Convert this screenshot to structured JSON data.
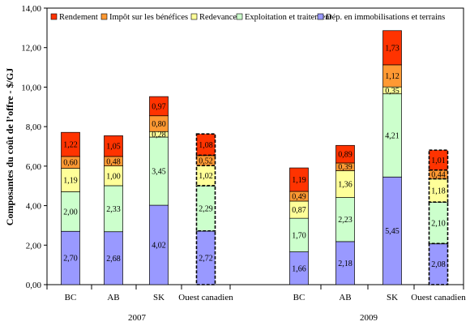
{
  "chart_data": {
    "type": "bar",
    "stacked": true,
    "title": "",
    "ylabel": "Composantes du coût de l’offre - $/GJ",
    "xlabel": "",
    "ylim": [
      0,
      14
    ],
    "yticks": [
      "0,00",
      "2,00",
      "4,00",
      "6,00",
      "8,00",
      "10,00",
      "12,00",
      "14,00"
    ],
    "grid": false,
    "legend_position": "top",
    "groups": [
      {
        "label": "2007",
        "categories": [
          {
            "label": "BC",
            "values": [
              2.7,
              2.0,
              1.19,
              0.6,
              1.22
            ],
            "labels": [
              "2,70",
              "2,00",
              "1,19",
              "0,60",
              "1,22"
            ],
            "dashed": false
          },
          {
            "label": "AB",
            "values": [
              2.68,
              2.33,
              1.0,
              0.48,
              1.05
            ],
            "labels": [
              "2,68",
              "2,33",
              "1,00",
              "0,48",
              "1,05"
            ],
            "dashed": false
          },
          {
            "label": "SK",
            "values": [
              4.02,
              3.45,
              0.28,
              0.8,
              0.97
            ],
            "labels": [
              "4,02",
              "3,45",
              "0,28",
              "0,80",
              "0,97"
            ],
            "dashed": false
          },
          {
            "label": "Ouest canadien",
            "values": [
              2.72,
              2.29,
              1.02,
              0.52,
              1.08
            ],
            "labels": [
              "2,72",
              "2,29",
              "1,02",
              "0,52",
              "1,08"
            ],
            "dashed": true
          }
        ]
      },
      {
        "label": "2009",
        "categories": [
          {
            "label": "BC",
            "values": [
              1.66,
              1.7,
              0.87,
              0.49,
              1.19
            ],
            "labels": [
              "1,66",
              "1,70",
              "0,87",
              "0,49",
              "1,19"
            ],
            "dashed": false
          },
          {
            "label": "AB",
            "values": [
              2.18,
              2.23,
              1.36,
              0.39,
              0.89
            ],
            "labels": [
              "2,18",
              "2,23",
              "1,36",
              "0,39",
              "0,89"
            ],
            "dashed": false
          },
          {
            "label": "SK",
            "values": [
              5.45,
              4.21,
              0.35,
              1.12,
              1.73
            ],
            "labels": [
              "5,45",
              "4,21",
              "0,35",
              "1,12",
              "1,73"
            ],
            "dashed": false
          },
          {
            "label": "Ouest canadien",
            "values": [
              2.08,
              2.1,
              1.18,
              0.44,
              1.01
            ],
            "labels": [
              "2,08",
              "2,10",
              "1,18",
              "0,44",
              "1,01"
            ],
            "dashed": true
          }
        ]
      }
    ],
    "series": [
      {
        "name": "Dép. en immobilisations et terrains",
        "color": "#9999ff"
      },
      {
        "name": "Exploitation et traitement",
        "color": "#ccffcc"
      },
      {
        "name": "Redevances",
        "color": "#ffff99"
      },
      {
        "name": "Impôt sur les bénéfices",
        "color": "#ff9933"
      },
      {
        "name": "Rendement",
        "color": "#ff3300"
      }
    ],
    "legend_order": [
      "Rendement",
      "Impôt sur les bénéfices",
      "Redevances",
      "Exploitation et traitement",
      "Dép. en immobilisations et terrains"
    ]
  }
}
